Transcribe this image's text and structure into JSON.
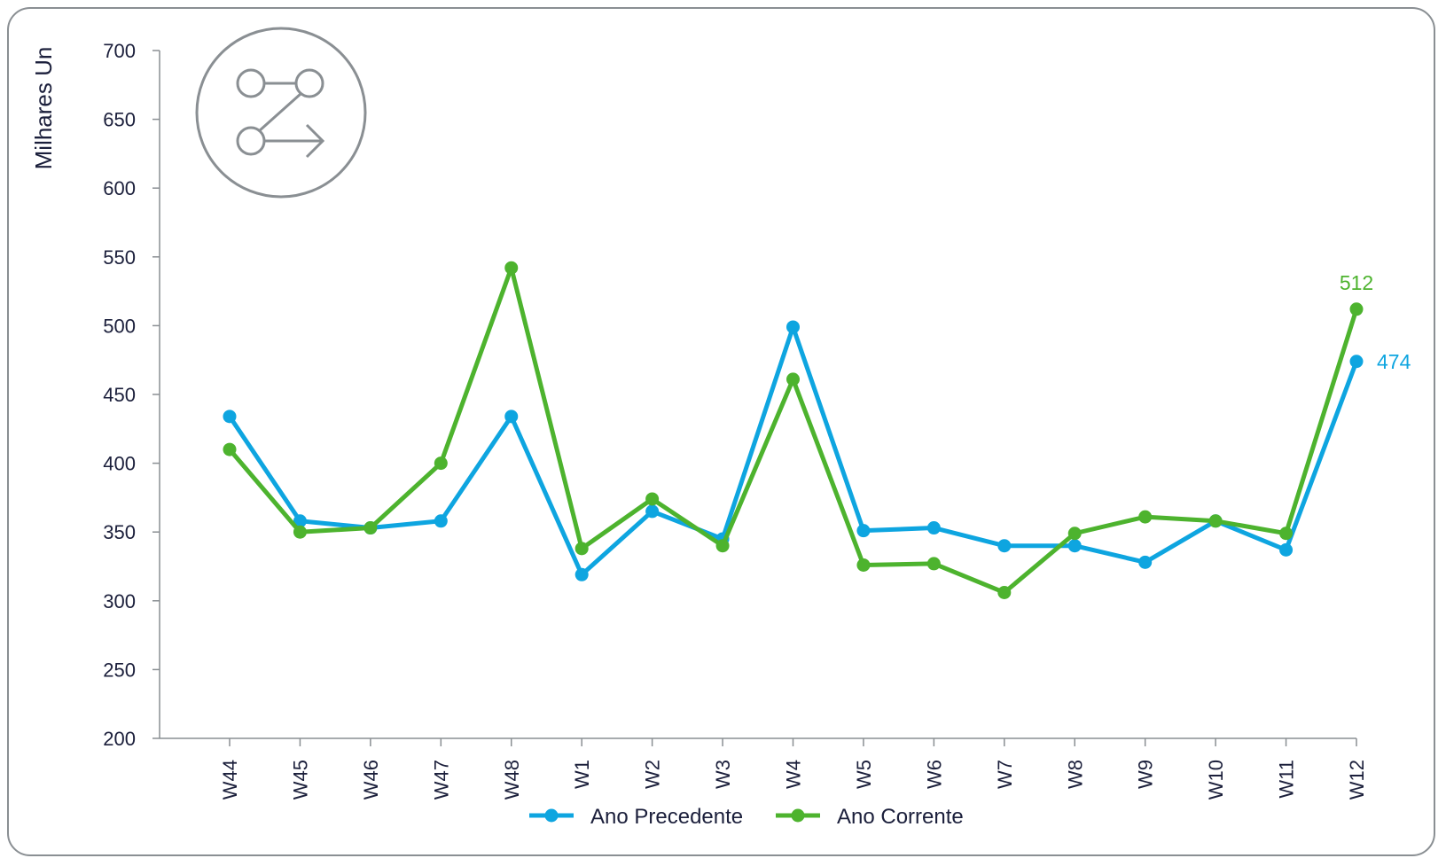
{
  "chart_data": {
    "type": "line",
    "ylabel": "Milhares Un",
    "ylim": [
      200,
      700
    ],
    "yticks": [
      200,
      250,
      300,
      350,
      400,
      450,
      500,
      550,
      600,
      650,
      700
    ],
    "categories": [
      "W44",
      "W45",
      "W46",
      "W47",
      "W48",
      "W1",
      "W2",
      "W3",
      "W4",
      "W5",
      "W6",
      "W7",
      "W8",
      "W9",
      "W10",
      "W11",
      "W12"
    ],
    "series": [
      {
        "name": "Ano Precedente",
        "color": "#0ea5e0",
        "values": [
          434,
          358,
          353,
          358,
          434,
          319,
          365,
          345,
          499,
          351,
          353,
          340,
          340,
          328,
          358,
          337,
          474
        ]
      },
      {
        "name": "Ano Corrente",
        "color": "#4db32e",
        "values": [
          410,
          350,
          353,
          400,
          542,
          338,
          374,
          340,
          461,
          326,
          327,
          306,
          349,
          361,
          358,
          349,
          512
        ]
      }
    ],
    "data_labels": [
      {
        "series": "Ano Corrente",
        "category": "W12",
        "text": "512"
      },
      {
        "series": "Ano Precedente",
        "category": "W12",
        "text": "474"
      }
    ],
    "legend_position": "bottom",
    "grid": false
  },
  "icon": {
    "name": "workflow-branch-icon",
    "color": "#8a8f93"
  }
}
